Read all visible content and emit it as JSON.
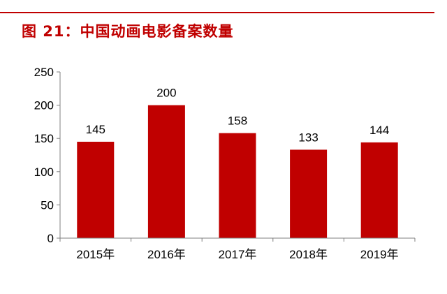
{
  "header": {
    "title": "图 21：中国动画电影备案数量"
  },
  "colors": {
    "accent": "#c00000",
    "bar": "#c00000",
    "axis": "#7f7f7f"
  },
  "chart_data": {
    "type": "bar",
    "categories": [
      "2015年",
      "2016年",
      "2017年",
      "2018年",
      "2019年"
    ],
    "values": [
      145,
      200,
      158,
      133,
      144
    ],
    "data_labels": [
      "145",
      "200",
      "158",
      "133",
      "144"
    ],
    "title": "",
    "xlabel": "",
    "ylabel": "",
    "ylim": [
      0,
      250
    ],
    "yticks": [
      "0",
      "50",
      "100",
      "150",
      "200",
      "250"
    ],
    "grid": false,
    "legend": "none"
  }
}
